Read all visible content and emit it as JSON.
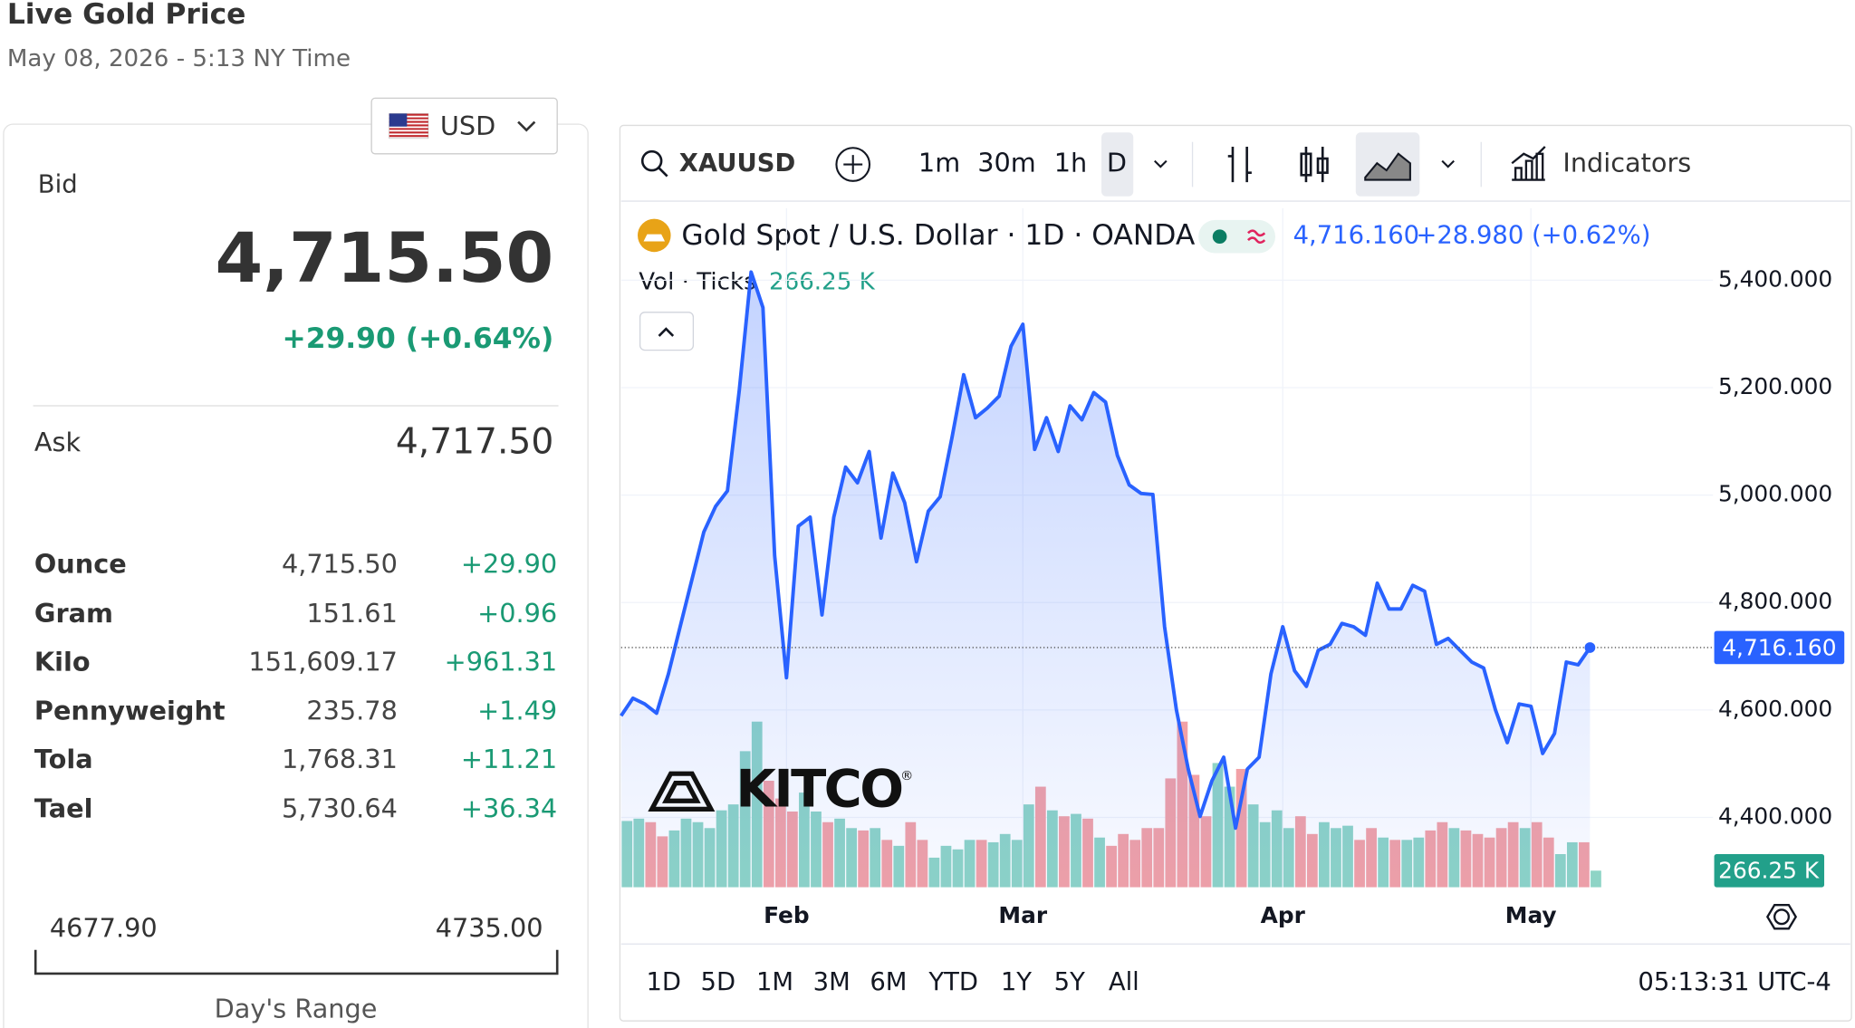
{
  "header": {
    "title": "Live Gold Price",
    "timestamp": "May 08, 2026 - 5:13 NY Time"
  },
  "currency": "USD",
  "quote": {
    "bid_label": "Bid",
    "bid": "4,715.50",
    "change": "+29.90 (+0.64%)",
    "ask_label": "Ask",
    "ask": "4,717.50"
  },
  "units": {
    "rows": [
      [
        "Ounce",
        "4,715.50",
        "+29.90"
      ],
      [
        "Gram",
        "151.61",
        "+0.96"
      ],
      [
        "Kilo",
        "151,609.17",
        "+961.31"
      ],
      [
        "Pennyweight",
        "235.78",
        "+1.49"
      ],
      [
        "Tola",
        "1,768.31",
        "+11.21"
      ],
      [
        "Tael",
        "5,730.64",
        "+36.34"
      ]
    ]
  },
  "day_range": {
    "low": "4677.90",
    "high": "4735.00",
    "label": "Day's Range"
  },
  "toolbar": {
    "symbol": "XAUUSD",
    "intervals": [
      "1m",
      "30m",
      "1h",
      "D"
    ],
    "selected_interval": 3,
    "indicators": "Indicators"
  },
  "footer": {
    "ranges": [
      "1D",
      "5D",
      "1M",
      "3M",
      "6M",
      "YTD",
      "1Y",
      "5Y",
      "All"
    ],
    "clock": "05:13:31 UTC-4"
  },
  "logo": {
    "name": "KITCO",
    "mark": "®"
  },
  "chart_data": {
    "type": "line",
    "title": "Gold Spot / U.S. Dollar · 1D · OANDA",
    "last_label": "4,716.160",
    "change_label": "+28.980 (+0.62%)",
    "color": "#2962ff",
    "grid": true,
    "categories": [
      null,
      null,
      null,
      null,
      null,
      null,
      null,
      null,
      null,
      null,
      null,
      null,
      null,
      null,
      "Feb",
      null,
      null,
      null,
      null,
      null,
      null,
      null,
      null,
      null,
      null,
      null,
      null,
      null,
      null,
      null,
      null,
      null,
      null,
      null,
      "Mar",
      null,
      null,
      null,
      null,
      null,
      null,
      null,
      null,
      null,
      null,
      null,
      null,
      null,
      null,
      null,
      null,
      null,
      null,
      null,
      null,
      null,
      "Apr",
      null,
      null,
      null,
      null,
      null,
      null,
      null,
      null,
      null,
      null,
      null,
      null,
      null,
      null,
      null,
      null,
      null,
      null,
      null,
      null,
      "May",
      null,
      null,
      null,
      null,
      null
    ],
    "values": [
      4589,
      4622,
      4611,
      4594,
      4667,
      4755,
      4843,
      4931,
      4979,
      5008,
      5195,
      5415,
      5349,
      4887,
      4660,
      4942,
      4959,
      4777,
      4959,
      5052,
      5023,
      5081,
      4920,
      5041,
      4986,
      4876,
      4970,
      4997,
      5107,
      5224,
      5144,
      5162,
      5184,
      5277,
      5318,
      5085,
      5144,
      5081,
      5166,
      5140,
      5191,
      5173,
      5074,
      5019,
      5003,
      5001,
      4755,
      4600,
      4490,
      4402,
      4468,
      4512,
      4380,
      4490,
      4512,
      4667,
      4755,
      4673,
      4644,
      4711,
      4722,
      4761,
      4755,
      4739,
      4836,
      4788,
      4788,
      4832,
      4821,
      4722,
      4733,
      4711,
      4689,
      4678,
      4600,
      4539,
      4611,
      4607,
      4519,
      4556,
      4689,
      4684,
      4716.16
    ],
    "ylim": [
      4270,
      5534
    ],
    "yticks": [
      {
        "value": 4400,
        "label": "4,400.000"
      },
      {
        "value": 4600,
        "label": "4,600.000"
      },
      {
        "value": 4800,
        "label": "4,800.000"
      },
      {
        "value": 5000,
        "label": "5,000.000"
      },
      {
        "value": 5200,
        "label": "5,200.000"
      },
      {
        "value": 5400,
        "label": "5,400.000"
      }
    ],
    "volume": {
      "name": "Vol · Ticks",
      "last_label": "266.25 K",
      "up_color": "#8ed4c6",
      "down_color": "#f2a1a6",
      "label_color": "#22a08a",
      "values": [
        1064,
        1102,
        1045,
        817,
        912,
        1102,
        1045,
        950,
        1235,
        1330,
        2185,
        2660,
        1710,
        1425,
        1216,
        1520,
        1216,
        1045,
        1102,
        950,
        912,
        950,
        760,
        665,
        1045,
        760,
        475,
        665,
        608,
        760,
        760,
        722,
        855,
        760,
        1330,
        1615,
        1235,
        1140,
        1178,
        1102,
        798,
        665,
        855,
        760,
        950,
        950,
        1748,
        2660,
        1805,
        1140,
        1995,
        1615,
        1900,
        1330,
        1045,
        1235,
        950,
        1140,
        855,
        1045,
        950,
        988,
        760,
        950,
        798,
        760,
        760,
        798,
        912,
        1045,
        950,
        912,
        855,
        798,
        950,
        1045,
        950,
        1045,
        798,
        532,
        722,
        722,
        266.25
      ]
    }
  }
}
